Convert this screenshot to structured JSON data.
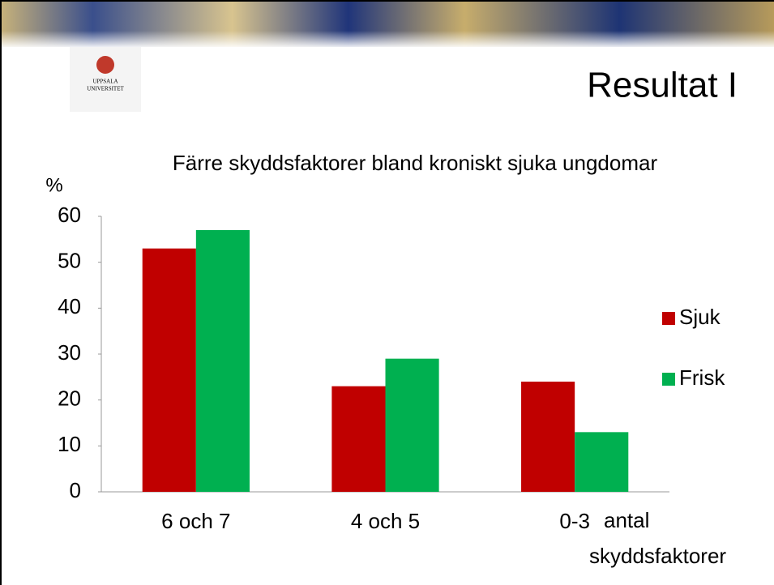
{
  "logo": {
    "line1": "UPPSALA",
    "line2": "UNIVERSITET"
  },
  "slide_title": "Resultat I",
  "chart_data": {
    "type": "bar",
    "title": "Färre skyddsfaktorer bland kroniskt sjuka ungdomar",
    "y_label": "%",
    "x_label": "antal skyddsfaktorer",
    "categories": [
      "6 och 7",
      "4 och 5",
      "0-3"
    ],
    "series": [
      {
        "name": "Sjuk",
        "color": "#c00000",
        "values": [
          53,
          23,
          24
        ]
      },
      {
        "name": "Frisk",
        "color": "#00b050",
        "values": [
          57,
          29,
          13
        ]
      }
    ],
    "ylim": [
      0,
      60
    ],
    "yticks": [
      0,
      10,
      20,
      30,
      40,
      50,
      60
    ],
    "grid": false,
    "legend": "right"
  }
}
